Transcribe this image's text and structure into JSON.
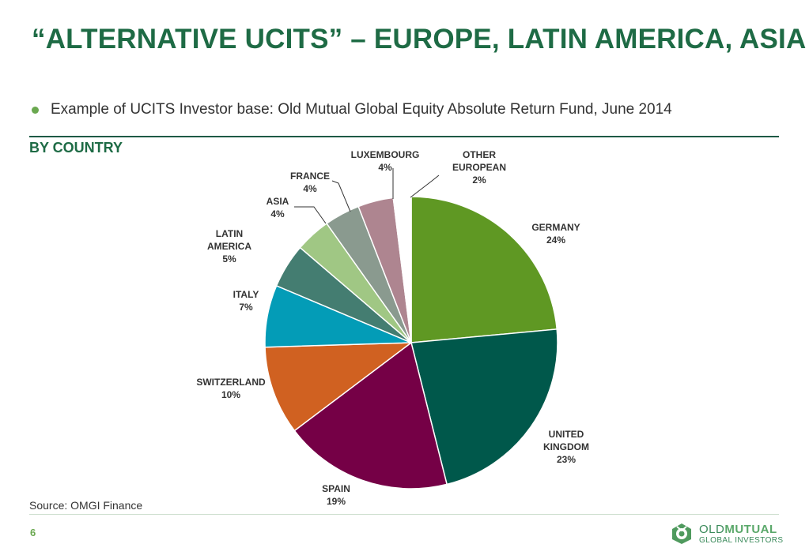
{
  "slide": {
    "title": "“ALTERNATIVE UCITS” – EUROPE, LATIN AMERICA, ASIA",
    "bullet": "Example of UCITS Investor base: Old Mutual Global Equity Absolute Return Fund, June 2014",
    "section_heading": "BY COUNTRY",
    "source": "Source: OMGI Finance",
    "page_number": "6"
  },
  "logo": {
    "line1_bold": "OLD",
    "line1_light": "MUTUAL",
    "line2": "GLOBAL INVESTORS"
  },
  "colors": {
    "title": "#1e6b45",
    "bullet": "#6aa84f"
  },
  "chart_data": {
    "type": "pie",
    "title": "",
    "slices": [
      {
        "label": [
          "GERMANY"
        ],
        "value": 24,
        "display": "24%",
        "color": "#5f9823"
      },
      {
        "label": [
          "UNITED",
          "KINGDOM"
        ],
        "value": 23,
        "display": "23%",
        "color": "#00584b"
      },
      {
        "label": [
          "SPAIN"
        ],
        "value": 19,
        "display": "19%",
        "color": "#750046"
      },
      {
        "label": [
          "SWITZERLAND"
        ],
        "value": 10,
        "display": "10%",
        "color": "#d06121"
      },
      {
        "label": [
          "ITALY"
        ],
        "value": 7,
        "display": "7%",
        "color": "#039cb7"
      },
      {
        "label": [
          "LATIN",
          "AMERICA"
        ],
        "value": 5,
        "display": "5%",
        "color": "#447d71"
      },
      {
        "label": [
          "ASIA"
        ],
        "value": 4,
        "display": "4%",
        "color": "#a0c784"
      },
      {
        "label": [
          "FRANCE"
        ],
        "value": 4,
        "display": "4%",
        "color": "#8a9a8f"
      },
      {
        "label": [
          "LUXEMBOURG"
        ],
        "value": 4,
        "display": "4%",
        "color": "#ae8590"
      },
      {
        "label": [
          "OTHER",
          "EUROPEAN"
        ],
        "value": 2,
        "display": "2%",
        "color": "#ffffff"
      }
    ]
  }
}
